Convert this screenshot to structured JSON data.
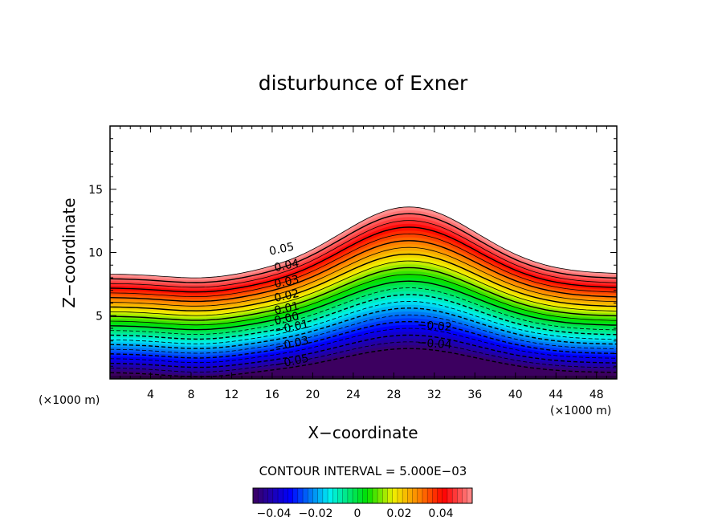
{
  "chart_data": {
    "type": "contour",
    "title": "disturbunce of Exner",
    "xlabel": "X−coordinate",
    "ylabel": "Z−coordinate",
    "x_unit": "(×1000 m)",
    "y_unit": "(×1000 m)",
    "xlim": [
      0,
      50
    ],
    "ylim": [
      0,
      20
    ],
    "x_ticks": [
      4,
      8,
      12,
      16,
      20,
      24,
      28,
      32,
      36,
      40,
      44,
      48
    ],
    "x_tick_labels": [
      "4",
      "8",
      "12",
      "16",
      "20",
      "24",
      "28",
      "32",
      "36",
      "40",
      "44",
      "48"
    ],
    "y_ticks": [
      5,
      10,
      15
    ],
    "y_tick_labels": [
      "5",
      "10",
      "15"
    ],
    "field_min": -0.05,
    "field_max": 0.055,
    "contour_interval_text": "CONTOUR INTERVAL = 5.000E−03",
    "contour_interval": 0.005,
    "negative_contours_dashed": true,
    "contour_labels": [
      {
        "text": "0.05",
        "x": 17.0,
        "z": 10.0
      },
      {
        "text": "0.04",
        "x": 17.5,
        "z": 8.7
      },
      {
        "text": "0.03",
        "x": 17.5,
        "z": 7.4
      },
      {
        "text": "0.02",
        "x": 17.5,
        "z": 6.3
      },
      {
        "text": "0.01",
        "x": 17.5,
        "z": 5.3
      },
      {
        "text": "0.00",
        "x": 17.5,
        "z": 4.5
      },
      {
        "text": "−0.01",
        "x": 18.0,
        "z": 3.8
      },
      {
        "text": "−0.02",
        "x": 32.0,
        "z": 3.9
      },
      {
        "text": "−0.03",
        "x": 18.0,
        "z": 2.5
      },
      {
        "text": "−0.04",
        "x": 32.0,
        "z": 2.5
      },
      {
        "text": "−0.05",
        "x": 18.0,
        "z": 1.1
      }
    ],
    "colorbar": {
      "min": -0.05,
      "max": 0.055,
      "tick_values": [
        -0.04,
        -0.02,
        0,
        0.02,
        0.04
      ],
      "tick_labels": [
        "−0.04",
        "−0.02",
        "0",
        "0.02",
        "0.04"
      ]
    },
    "colors": {
      "violet": "#3c0060",
      "blue": "#0000ff",
      "cyan": "#00f0f0",
      "green": "#00e000",
      "yellow": "#f0f000",
      "orange": "#ff8000",
      "red": "#ff0000",
      "pink": "#ff9090"
    }
  }
}
